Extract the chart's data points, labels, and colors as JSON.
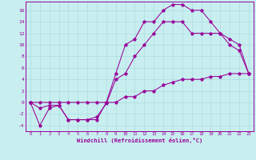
{
  "background_color": "#c8eef0",
  "grid_color": "#aadddd",
  "line_color": "#990099",
  "xlabel": "Windchill (Refroidissement éolien,°C)",
  "xlim": [
    -0.5,
    23.5
  ],
  "ylim": [
    -5,
    17.5
  ],
  "xticks": [
    0,
    1,
    2,
    3,
    4,
    5,
    6,
    7,
    8,
    9,
    10,
    11,
    12,
    13,
    14,
    15,
    16,
    17,
    18,
    19,
    20,
    21,
    22,
    23
  ],
  "yticks": [
    -4,
    -2,
    0,
    2,
    4,
    6,
    8,
    10,
    12,
    14,
    16
  ],
  "curve1_x": [
    0,
    1,
    2,
    3,
    4,
    5,
    6,
    7,
    8,
    9,
    10,
    11,
    12,
    13,
    14,
    15,
    16,
    17,
    18,
    19,
    20,
    21,
    22,
    23
  ],
  "curve1_y": [
    0,
    -4,
    -1,
    -0.5,
    -3,
    -3,
    -3,
    -3,
    0,
    5,
    10,
    11,
    14,
    14,
    16,
    17,
    17,
    16,
    16,
    14,
    12,
    11,
    10,
    5
  ],
  "curve2_x": [
    0,
    1,
    2,
    3,
    4,
    5,
    6,
    7,
    8,
    9,
    10,
    11,
    12,
    13,
    14,
    15,
    16,
    17,
    18,
    19,
    20,
    21,
    22,
    23
  ],
  "curve2_y": [
    0,
    -1,
    -0.5,
    -0.5,
    -3,
    -3,
    -3,
    -2.5,
    -0.2,
    4,
    5,
    8,
    10,
    12,
    14,
    14,
    14,
    12,
    12,
    12,
    12,
    10,
    9,
    5
  ],
  "curve3_x": [
    0,
    1,
    2,
    3,
    4,
    5,
    6,
    7,
    8,
    9,
    10,
    11,
    12,
    13,
    14,
    15,
    16,
    17,
    18,
    19,
    20,
    21,
    22,
    23
  ],
  "curve3_y": [
    0,
    0,
    0,
    0,
    0,
    0,
    0,
    0,
    0,
    0,
    1,
    1,
    2,
    2,
    3,
    3.5,
    4,
    4,
    4,
    4.5,
    4.5,
    5,
    5,
    5
  ]
}
